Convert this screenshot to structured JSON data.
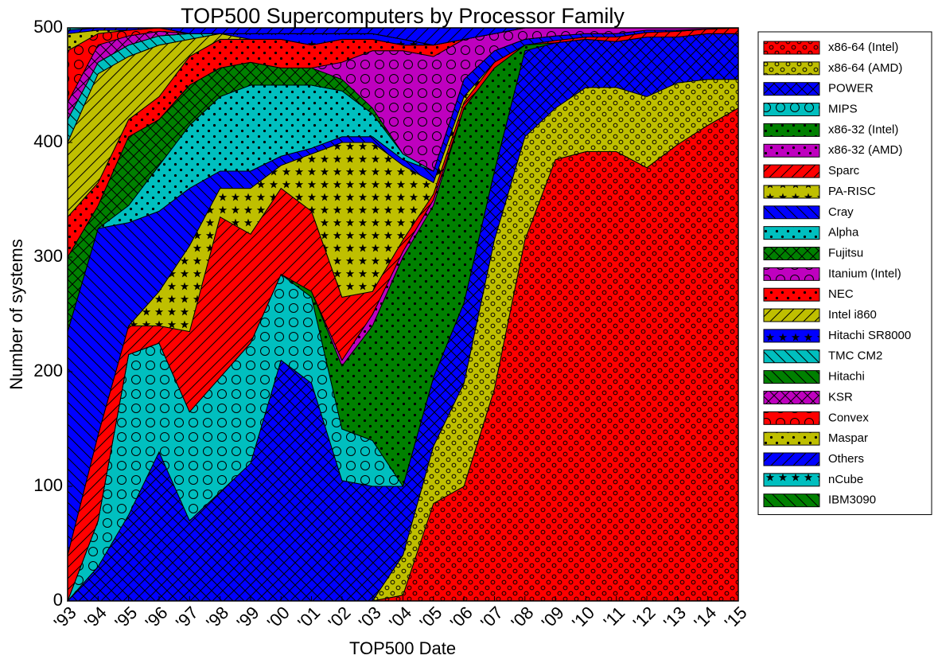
{
  "chart_data": {
    "type": "stacked_area",
    "title": "TOP500 Supercomputers by Processor Family",
    "x_label": "TOP500 Date",
    "y_label": "Number of systems",
    "categories": [
      "'93",
      "'94",
      "'95",
      "'96",
      "'97",
      "'98",
      "'99",
      "'00",
      "'01",
      "'02",
      "'03",
      "'04",
      "'05",
      "'06",
      "'07",
      "'08",
      "'09",
      "'10",
      "'11",
      "'12",
      "'13",
      "'14",
      "'15"
    ],
    "ylim": [
      0,
      500
    ],
    "yticks": [
      0,
      100,
      200,
      300,
      400,
      500
    ],
    "legend": "outside-right",
    "series": [
      {
        "name": "x86-64 (Intel)",
        "color": "#ff0000",
        "hatch": "o",
        "values": [
          0,
          0,
          0,
          0,
          0,
          0,
          0,
          0,
          0,
          0,
          0,
          5,
          85,
          100,
          185,
          315,
          385,
          392,
          392,
          378,
          398,
          415,
          430
        ]
      },
      {
        "name": "x86-64 (AMD)",
        "color": "#bfbf00",
        "hatch": "o",
        "values": [
          0,
          0,
          0,
          0,
          0,
          0,
          0,
          0,
          0,
          0,
          0,
          35,
          50,
          90,
          130,
          90,
          45,
          56,
          56,
          62,
          54,
          40,
          25
        ]
      },
      {
        "name": "POWER",
        "color": "#0000ff",
        "hatch": "x",
        "values": [
          0,
          30,
          75,
          130,
          70,
          95,
          120,
          210,
          190,
          105,
          100,
          60,
          60,
          70,
          60,
          75,
          57,
          42,
          40,
          52,
          40,
          40,
          40
        ]
      },
      {
        "name": "MIPS",
        "color": "#00bfbf",
        "hatch": "O",
        "values": [
          0,
          40,
          140,
          95,
          95,
          100,
          105,
          75,
          75,
          45,
          40,
          0,
          0,
          0,
          0,
          0,
          0,
          0,
          0,
          0,
          0,
          0,
          0
        ]
      },
      {
        "name": "x86-32 (Intel)",
        "color": "#008000",
        "hatch": ".",
        "values": [
          0,
          0,
          0,
          0,
          0,
          0,
          0,
          0,
          5,
          55,
          100,
          200,
          150,
          170,
          90,
          5,
          0,
          0,
          0,
          0,
          0,
          0,
          0
        ]
      },
      {
        "name": "x86-32 (AMD)",
        "color": "#bf00bf",
        "hatch": ".",
        "values": [
          0,
          0,
          0,
          0,
          0,
          0,
          0,
          0,
          0,
          5,
          10,
          5,
          5,
          0,
          0,
          0,
          0,
          0,
          0,
          0,
          0,
          0,
          0
        ]
      },
      {
        "name": "Sparc",
        "color": "#ff0000",
        "hatch": "/",
        "values": [
          40,
          75,
          25,
          15,
          70,
          140,
          95,
          75,
          70,
          55,
          20,
          10,
          5,
          5,
          5,
          0,
          2,
          2,
          4,
          4,
          5,
          4,
          5
        ]
      },
      {
        "name": "PA-RISC",
        "color": "#bfbf00",
        "hatch": "*",
        "values": [
          0,
          0,
          0,
          30,
          75,
          25,
          40,
          20,
          50,
          135,
          130,
          65,
          10,
          5,
          0,
          0,
          0,
          0,
          0,
          0,
          0,
          0,
          0
        ]
      },
      {
        "name": "Cray",
        "color": "#0000ff",
        "hatch": "\\",
        "values": [
          195,
          180,
          90,
          70,
          50,
          15,
          15,
          8,
          5,
          5,
          5,
          5,
          10,
          15,
          10,
          5,
          4,
          3,
          3,
          2,
          1,
          0,
          0
        ]
      },
      {
        "name": "Alpha",
        "color": "#00bfbf",
        "hatch": ".",
        "values": [
          0,
          0,
          15,
          40,
          55,
          65,
          75,
          62,
          55,
          40,
          20,
          5,
          0,
          0,
          0,
          0,
          0,
          0,
          0,
          0,
          0,
          0,
          0
        ]
      },
      {
        "name": "Fujitsu",
        "color": "#008000",
        "hatch": "x",
        "values": [
          65,
          20,
          60,
          40,
          35,
          25,
          20,
          15,
          15,
          10,
          5,
          0,
          0,
          0,
          0,
          0,
          0,
          0,
          0,
          0,
          0,
          0,
          0
        ]
      },
      {
        "name": "Itanium (Intel)",
        "color": "#bf00bf",
        "hatch": "O",
        "values": [
          0,
          0,
          0,
          0,
          0,
          0,
          0,
          0,
          0,
          15,
          50,
          90,
          100,
          35,
          15,
          10,
          7,
          5,
          5,
          2,
          2,
          1,
          0
        ]
      },
      {
        "name": "NEC",
        "color": "#ff0000",
        "hatch": ".",
        "values": [
          35,
          20,
          15,
          20,
          25,
          25,
          20,
          25,
          20,
          20,
          10,
          5,
          10,
          0,
          0,
          0,
          0,
          0,
          0,
          0,
          0,
          0,
          0
        ]
      },
      {
        "name": "Intel i860",
        "color": "#bfbf00",
        "hatch": "/",
        "values": [
          65,
          95,
          55,
          45,
          15,
          5,
          0,
          0,
          0,
          0,
          0,
          0,
          0,
          0,
          0,
          0,
          0,
          0,
          0,
          0,
          0,
          0,
          0
        ]
      },
      {
        "name": "Hitachi SR8000",
        "color": "#0000ff",
        "hatch": "*",
        "values": [
          0,
          0,
          0,
          0,
          0,
          0,
          5,
          5,
          10,
          5,
          5,
          5,
          0,
          0,
          0,
          0,
          0,
          0,
          0,
          0,
          0,
          0,
          0
        ]
      },
      {
        "name": "TMC CM2",
        "color": "#00bfbf",
        "hatch": "\\",
        "values": [
          20,
          10,
          10,
          8,
          5,
          0,
          0,
          0,
          0,
          0,
          0,
          0,
          0,
          0,
          0,
          0,
          0,
          0,
          0,
          0,
          0,
          0,
          0
        ]
      },
      {
        "name": "Hitachi",
        "color": "#008000",
        "hatch": "\\",
        "values": [
          0,
          0,
          0,
          0,
          0,
          0,
          0,
          0,
          0,
          0,
          0,
          0,
          0,
          0,
          0,
          0,
          0,
          0,
          0,
          0,
          0,
          0,
          0
        ]
      },
      {
        "name": "KSR",
        "color": "#bf00bf",
        "hatch": "x",
        "values": [
          15,
          15,
          8,
          4,
          0,
          0,
          0,
          0,
          0,
          0,
          0,
          0,
          0,
          0,
          0,
          0,
          0,
          0,
          0,
          0,
          0,
          0,
          0
        ]
      },
      {
        "name": "Convex",
        "color": "#ff0000",
        "hatch": "O",
        "values": [
          45,
          10,
          5,
          3,
          0,
          0,
          0,
          0,
          0,
          0,
          0,
          0,
          0,
          0,
          0,
          0,
          0,
          0,
          0,
          0,
          0,
          0,
          0
        ]
      },
      {
        "name": "Maspar",
        "color": "#bfbf00",
        "hatch": ".",
        "values": [
          15,
          3,
          0,
          0,
          0,
          0,
          0,
          0,
          0,
          0,
          0,
          0,
          0,
          0,
          0,
          0,
          0,
          0,
          0,
          0,
          0,
          0,
          0
        ]
      },
      {
        "name": "Others",
        "color": "#0000ff",
        "hatch": "/",
        "values": [
          3,
          2,
          2,
          0,
          5,
          5,
          5,
          5,
          5,
          5,
          5,
          10,
          15,
          10,
          5,
          0,
          0,
          0,
          0,
          0,
          0,
          0,
          0
        ]
      },
      {
        "name": "nCube",
        "color": "#00bfbf",
        "hatch": "*",
        "values": [
          2,
          0,
          0,
          0,
          0,
          0,
          0,
          0,
          0,
          0,
          0,
          0,
          0,
          0,
          0,
          0,
          0,
          0,
          0,
          0,
          0,
          0,
          0
        ]
      },
      {
        "name": "IBM3090",
        "color": "#008000",
        "hatch": "\\",
        "values": [
          0,
          0,
          0,
          0,
          0,
          0,
          0,
          0,
          0,
          0,
          0,
          0,
          0,
          0,
          0,
          0,
          0,
          0,
          0,
          0,
          0,
          0,
          0
        ]
      }
    ]
  }
}
